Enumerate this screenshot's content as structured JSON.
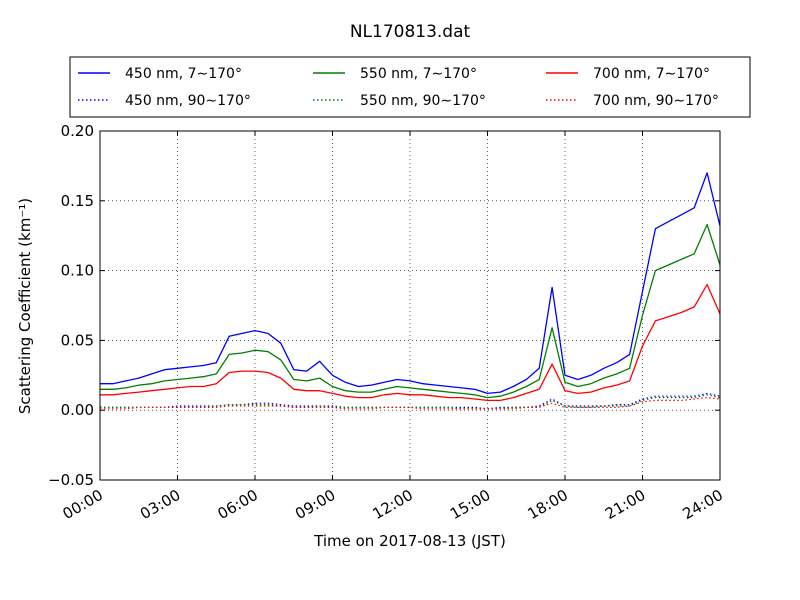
{
  "chart_data": {
    "type": "line",
    "title": "NL170813.dat",
    "xlabel": "Time on 2017-08-13 (JST)",
    "ylabel": "Scattering Coefficient (km⁻¹)",
    "xlim": [
      0,
      24
    ],
    "ylim": [
      -0.05,
      0.2
    ],
    "grid": true,
    "legend_position": "top",
    "x_tick_labels": [
      "00:00",
      "03:00",
      "06:00",
      "09:00",
      "12:00",
      "15:00",
      "18:00",
      "21:00",
      "24:00"
    ],
    "y_tick_labels": [
      "−0.05",
      "0.00",
      "0.05",
      "0.10",
      "0.15",
      "0.20"
    ],
    "y_tick_values": [
      -0.05,
      0.0,
      0.05,
      0.1,
      0.15,
      0.2
    ],
    "x": [
      0,
      0.5,
      1,
      1.5,
      2,
      2.5,
      3,
      3.5,
      4,
      4.5,
      5,
      5.5,
      6,
      6.5,
      7,
      7.5,
      8,
      8.5,
      9,
      9.5,
      10,
      10.5,
      11,
      11.5,
      12,
      12.5,
      13,
      13.5,
      14,
      14.5,
      15,
      15.5,
      16,
      16.5,
      17,
      17.5,
      18,
      18.5,
      19,
      19.5,
      20,
      20.5,
      21,
      21.5,
      22,
      22.5,
      23,
      23.5,
      24
    ],
    "series": [
      {
        "name": "450 nm, 7∼170°",
        "color": "#0000ff",
        "style": "solid",
        "values": [
          0.019,
          0.019,
          0.021,
          0.023,
          0.026,
          0.029,
          0.03,
          0.031,
          0.032,
          0.034,
          0.053,
          0.055,
          0.057,
          0.055,
          0.048,
          0.029,
          0.028,
          0.035,
          0.025,
          0.02,
          0.017,
          0.018,
          0.02,
          0.022,
          0.021,
          0.019,
          0.018,
          0.017,
          0.016,
          0.015,
          0.012,
          0.013,
          0.017,
          0.022,
          0.03,
          0.088,
          0.025,
          0.022,
          0.025,
          0.03,
          0.034,
          0.04,
          0.085,
          0.13,
          0.135,
          0.14,
          0.145,
          0.17,
          0.132
        ]
      },
      {
        "name": "550 nm, 7∼170°",
        "color": "#008000",
        "style": "solid",
        "values": [
          0.015,
          0.015,
          0.016,
          0.018,
          0.019,
          0.021,
          0.022,
          0.023,
          0.024,
          0.026,
          0.04,
          0.041,
          0.043,
          0.042,
          0.036,
          0.022,
          0.021,
          0.023,
          0.017,
          0.014,
          0.013,
          0.013,
          0.015,
          0.017,
          0.016,
          0.015,
          0.014,
          0.013,
          0.012,
          0.011,
          0.009,
          0.01,
          0.013,
          0.017,
          0.022,
          0.059,
          0.02,
          0.017,
          0.019,
          0.023,
          0.026,
          0.03,
          0.068,
          0.1,
          0.104,
          0.108,
          0.112,
          0.133,
          0.104
        ]
      },
      {
        "name": "700 nm, 7∼170°",
        "color": "#ff0000",
        "style": "solid",
        "values": [
          0.011,
          0.011,
          0.012,
          0.013,
          0.014,
          0.015,
          0.016,
          0.017,
          0.017,
          0.019,
          0.027,
          0.028,
          0.028,
          0.027,
          0.023,
          0.015,
          0.014,
          0.014,
          0.012,
          0.01,
          0.009,
          0.009,
          0.011,
          0.012,
          0.011,
          0.011,
          0.01,
          0.009,
          0.009,
          0.008,
          0.007,
          0.007,
          0.009,
          0.012,
          0.015,
          0.033,
          0.014,
          0.012,
          0.013,
          0.016,
          0.018,
          0.021,
          0.046,
          0.064,
          0.067,
          0.07,
          0.074,
          0.09,
          0.069
        ]
      },
      {
        "name": "450 nm, 90∼170°",
        "color": "#0000ff",
        "style": "dotted",
        "values": [
          0.002,
          0.002,
          0.002,
          0.002,
          0.002,
          0.002,
          0.003,
          0.003,
          0.003,
          0.003,
          0.004,
          0.004,
          0.005,
          0.005,
          0.004,
          0.003,
          0.003,
          0.003,
          0.003,
          0.002,
          0.002,
          0.002,
          0.002,
          0.002,
          0.002,
          0.002,
          0.002,
          0.002,
          0.002,
          0.002,
          0.001,
          0.002,
          0.002,
          0.002,
          0.003,
          0.008,
          0.003,
          0.003,
          0.003,
          0.003,
          0.004,
          0.004,
          0.008,
          0.01,
          0.01,
          0.01,
          0.01,
          0.012,
          0.01
        ]
      },
      {
        "name": "550 nm, 90∼170°",
        "color": "#008000",
        "style": "dotted",
        "values": [
          0.002,
          0.002,
          0.002,
          0.002,
          0.002,
          0.002,
          0.002,
          0.002,
          0.002,
          0.003,
          0.004,
          0.004,
          0.004,
          0.004,
          0.003,
          0.002,
          0.002,
          0.003,
          0.002,
          0.002,
          0.002,
          0.002,
          0.002,
          0.002,
          0.002,
          0.002,
          0.002,
          0.002,
          0.001,
          0.001,
          0.001,
          0.001,
          0.002,
          0.002,
          0.002,
          0.007,
          0.003,
          0.002,
          0.002,
          0.003,
          0.003,
          0.003,
          0.007,
          0.009,
          0.009,
          0.009,
          0.009,
          0.011,
          0.009
        ]
      },
      {
        "name": "700 nm, 90∼170°",
        "color": "#ff0000",
        "style": "dotted",
        "values": [
          0.001,
          0.001,
          0.001,
          0.002,
          0.002,
          0.002,
          0.002,
          0.002,
          0.002,
          0.002,
          0.003,
          0.003,
          0.003,
          0.003,
          0.003,
          0.002,
          0.002,
          0.002,
          0.002,
          0.001,
          0.001,
          0.001,
          0.002,
          0.002,
          0.002,
          0.001,
          0.001,
          0.001,
          0.001,
          0.001,
          0.001,
          0.001,
          0.001,
          0.002,
          0.002,
          0.005,
          0.002,
          0.002,
          0.002,
          0.002,
          0.002,
          0.003,
          0.006,
          0.007,
          0.007,
          0.007,
          0.008,
          0.009,
          0.008
        ]
      }
    ]
  }
}
